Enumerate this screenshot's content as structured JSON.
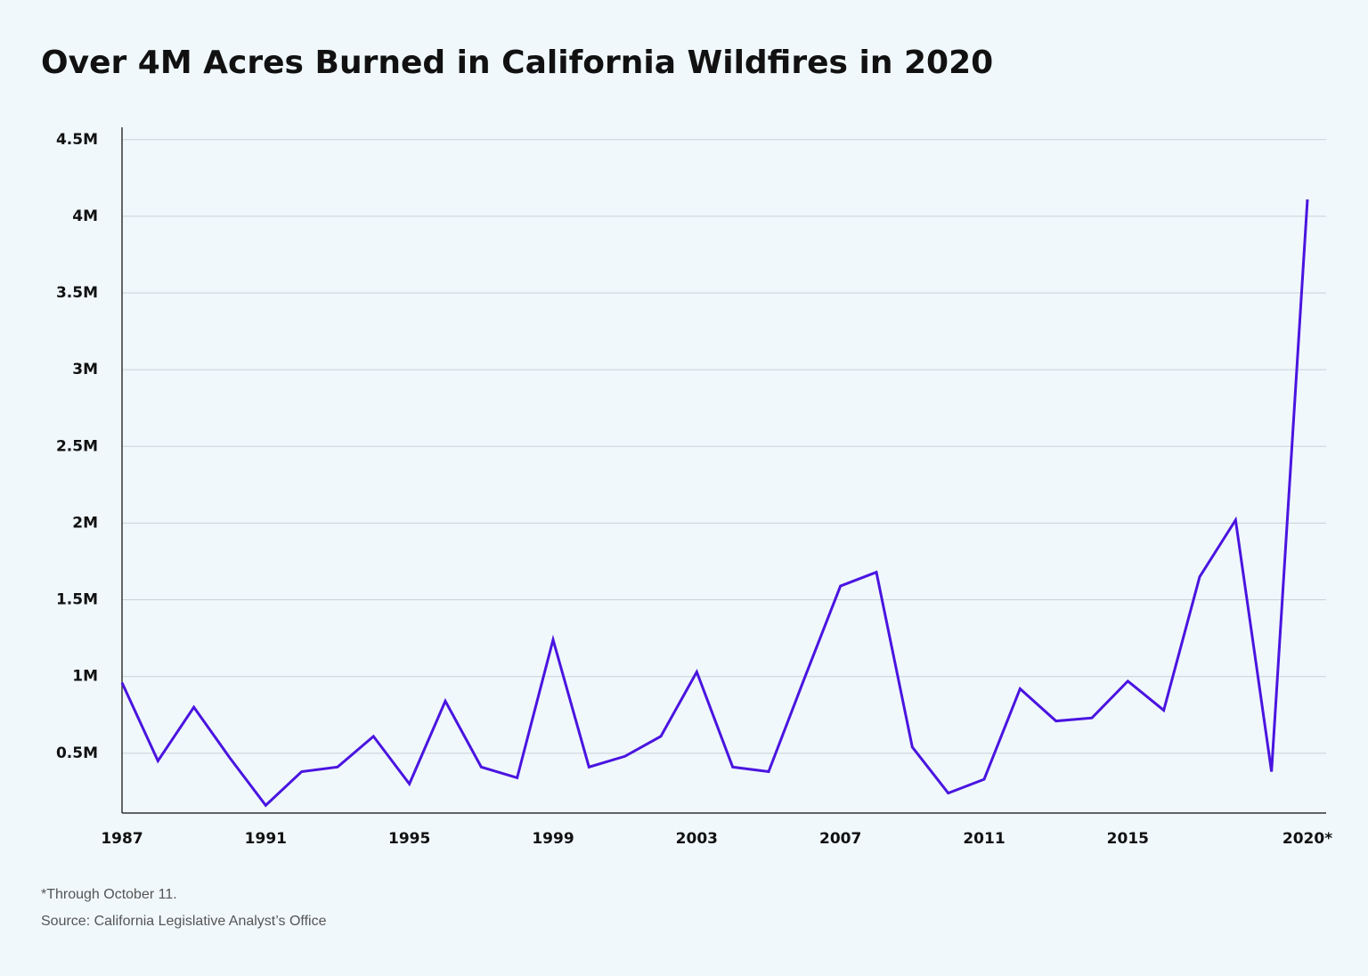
{
  "chart_data": {
    "type": "line",
    "title": "Over 4M Acres Burned in California Wildfires in 2020",
    "footnote": "*Through October 11.",
    "source": "Source: California Legislative Analyst’s Office",
    "categories": [
      "1987",
      null,
      null,
      null,
      "1991",
      null,
      null,
      null,
      "1995",
      null,
      null,
      null,
      "1999",
      null,
      null,
      null,
      "2003",
      null,
      null,
      null,
      "2007",
      null,
      null,
      null,
      "2011",
      null,
      null,
      null,
      "2015",
      null,
      null,
      null,
      null,
      "2020*"
    ],
    "series": [
      {
        "name": "Acres burned",
        "color": "#4a14e0",
        "values": [
          960000,
          450000,
          800000,
          470000,
          160000,
          380000,
          410000,
          610000,
          300000,
          840000,
          410000,
          340000,
          1240000,
          410000,
          480000,
          610000,
          1030000,
          410000,
          380000,
          990000,
          1590000,
          1680000,
          540000,
          240000,
          330000,
          920000,
          710000,
          730000,
          970000,
          780000,
          1650000,
          2020000,
          380000,
          4110000
        ]
      }
    ],
    "ylim": [
      110000,
      4580000
    ],
    "yticks": [
      {
        "value": 500000,
        "label": "0.5M"
      },
      {
        "value": 1000000,
        "label": "1M"
      },
      {
        "value": 1500000,
        "label": "1.5M"
      },
      {
        "value": 2000000,
        "label": "2M"
      },
      {
        "value": 2500000,
        "label": "2.5M"
      },
      {
        "value": 3000000,
        "label": "3M"
      },
      {
        "value": 3500000,
        "label": "3.5M"
      },
      {
        "value": 4000000,
        "label": "4M"
      },
      {
        "value": 4500000,
        "label": "4.5M"
      }
    ],
    "grid": true
  }
}
